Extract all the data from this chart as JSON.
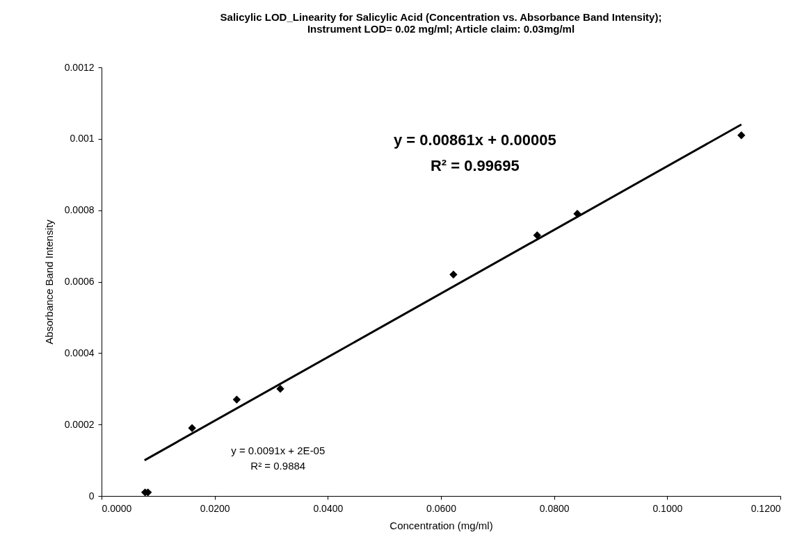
{
  "chart_data": {
    "type": "scatter",
    "title": [
      "Salicylic LOD_Linearity for Salicylic Acid (Concentration vs. Absorbance Band Intensity);",
      "Instrument LOD= 0.02 mg/ml; Article claim: 0.03mg/ml"
    ],
    "xlabel": "Concentration (mg/ml)",
    "ylabel": "Absorbance Band Intensity",
    "series": [
      {
        "type": "scatter",
        "marker": "diamond",
        "color": "#000000",
        "x": [
          0.0077,
          0.0082,
          0.016,
          0.0239,
          0.0316,
          0.0622,
          0.077,
          0.0841,
          0.1131
        ],
        "values": [
          1e-05,
          1e-05,
          0.00019,
          0.00027,
          0.0003,
          0.00062,
          0.00073,
          0.00079,
          0.00101
        ]
      },
      {
        "type": "line",
        "color": "#000000",
        "x": [
          0.0076,
          0.1131
        ],
        "values": [
          0.0001,
          0.00104
        ]
      }
    ],
    "xlim": [
      0,
      0.12
    ],
    "xticks": [
      {
        "value": 0,
        "label": "0.0000"
      },
      {
        "value": 0.02,
        "label": "0.0200"
      },
      {
        "value": 0.04,
        "label": "0.0400"
      },
      {
        "value": 0.06,
        "label": "0.0600"
      },
      {
        "value": 0.08,
        "label": "0.0800"
      },
      {
        "value": 0.1,
        "label": "0.1000"
      },
      {
        "value": 0.12,
        "label": "0.1200"
      }
    ],
    "ylim": [
      0,
      0.0012
    ],
    "yticks": [
      0,
      0.0002,
      0.0004,
      0.0006,
      0.0008,
      0.001,
      0.0012
    ],
    "annotations": [
      "y = 0.00861x + 0.00005",
      "R² = 0.99695",
      "y = 0.0091x + 2E-05",
      "R² = 0.9884"
    ],
    "grid": false
  }
}
